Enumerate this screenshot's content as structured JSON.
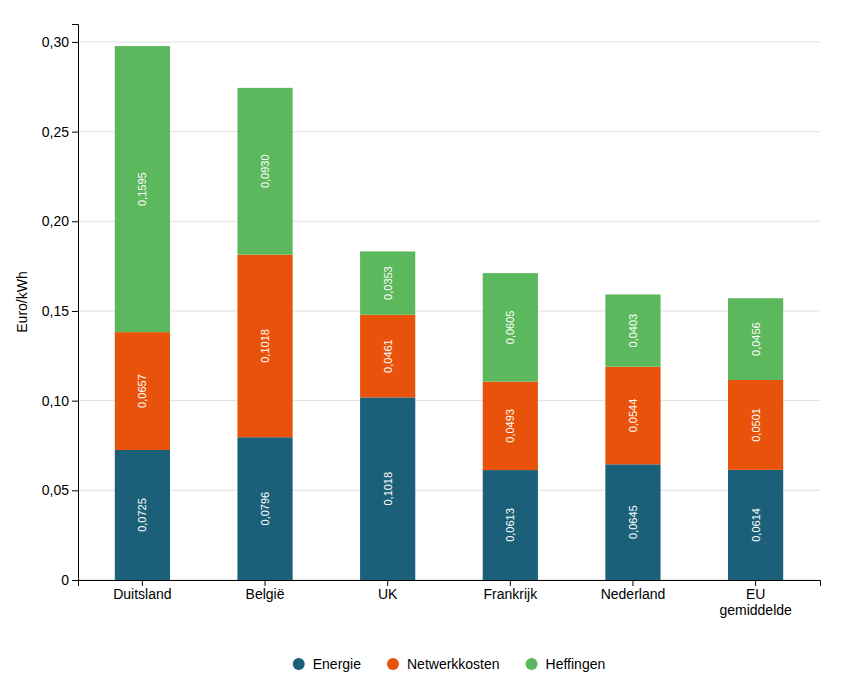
{
  "chart_data": {
    "type": "bar",
    "stacked": true,
    "categories": [
      "Duitsland",
      "België",
      "UK",
      "Frankrijk",
      "Nederland",
      "EU\ngemiddelde"
    ],
    "series": [
      {
        "name": "Energie",
        "color": "#1b5f78",
        "values": [
          0.0725,
          0.0796,
          0.1018,
          0.0613,
          0.0645,
          0.0614
        ],
        "value_labels": [
          "0,0725",
          "0,0796",
          "0,1018",
          "0,0613",
          "0,0645",
          "0,0614"
        ]
      },
      {
        "name": "Netwerkkosten",
        "color": "#e8520a",
        "values": [
          0.0657,
          0.1018,
          0.0461,
          0.0493,
          0.0544,
          0.0501
        ],
        "value_labels": [
          "0,0657",
          "0,1018",
          "0,0461",
          "0,0493",
          "0,0544",
          "0,0501"
        ]
      },
      {
        "name": "Heffingen",
        "color": "#5cb85c",
        "values": [
          0.1595,
          0.093,
          0.0353,
          0.0605,
          0.0403,
          0.0456
        ],
        "value_labels": [
          "0,1595",
          "0,0930",
          "0,0353",
          "0,0605",
          "0,0403",
          "0,0456"
        ]
      }
    ],
    "ylabel": "Euro/kWh",
    "ylim": [
      0,
      0.31
    ],
    "yticks": [
      0,
      {
        "value": 0.05,
        "label": "0,05"
      },
      {
        "value": 0.1,
        "label": "0,10"
      },
      {
        "value": 0.15,
        "label": "0,15"
      },
      {
        "value": 0.2,
        "label": "0,20"
      },
      {
        "value": 0.25,
        "label": "0,25"
      },
      {
        "value": 0.3,
        "label": "0,30"
      }
    ],
    "grid": true,
    "legend": "bottom",
    "data_labels": true
  }
}
